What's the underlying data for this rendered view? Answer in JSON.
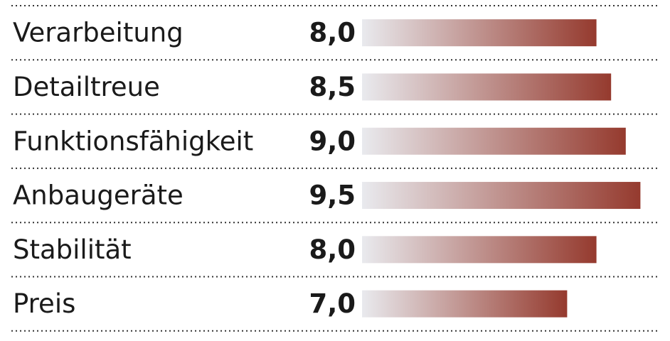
{
  "chart_data": {
    "type": "bar",
    "orientation": "horizontal",
    "categories": [
      "Verarbeitung",
      "Detailtreue",
      "Funktionsfähigkeit",
      "Anbaugeräte",
      "Stabilität",
      "Preis"
    ],
    "values": [
      8.0,
      8.5,
      9.0,
      9.5,
      8.0,
      7.0
    ],
    "value_labels": [
      "8,0",
      "8,5",
      "9,0",
      "9,5",
      "8,0",
      "7,0"
    ],
    "xlim": [
      0,
      10
    ],
    "color": [
      "#e9eaee",
      "#953a2e"
    ]
  }
}
